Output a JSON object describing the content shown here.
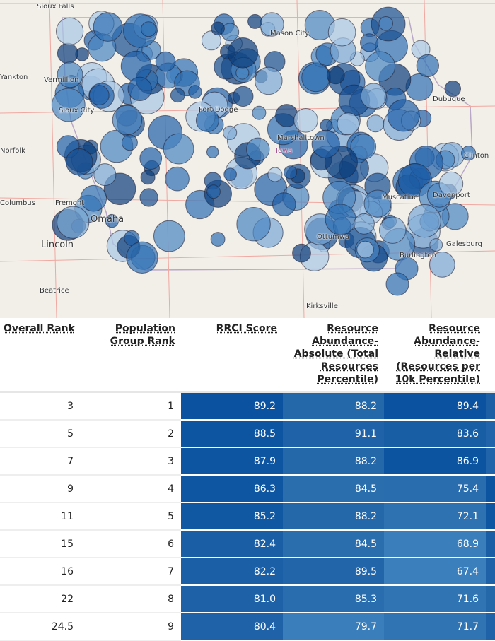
{
  "map": {
    "cities": [
      "Sioux Falls",
      "Yankton",
      "Vermillion",
      "Sioux City",
      "Norfolk",
      "Columbus",
      "Fremont",
      "Omaha",
      "Lincoln",
      "Beatrice",
      "Mason City",
      "Fort Dodge",
      "Marshalltown",
      "Iowa",
      "Dubuque",
      "Clinton",
      "Davenport",
      "Muscatine",
      "Ottumwa",
      "Galesburg",
      "Burlington",
      "Kirksville"
    ],
    "circle_color": "#1f5fa8"
  },
  "table": {
    "headers": [
      "Overall Rank",
      "Population Group Rank",
      "RRCI Score",
      "Resource Abundance-Absolute (Total Resources Percentile)",
      "Resource Abundance-Relative (Resources per 10k Percentile)"
    ],
    "rows": [
      [
        "3",
        "1",
        "89.2",
        "88.2",
        "89.4"
      ],
      [
        "5",
        "2",
        "88.5",
        "91.1",
        "83.6"
      ],
      [
        "7",
        "3",
        "87.9",
        "88.2",
        "86.9"
      ],
      [
        "9",
        "4",
        "86.3",
        "84.5",
        "75.4"
      ],
      [
        "11",
        "5",
        "85.2",
        "88.2",
        "72.1"
      ],
      [
        "15",
        "6",
        "82.4",
        "84.5",
        "68.9"
      ],
      [
        "16",
        "7",
        "82.2",
        "89.5",
        "67.4"
      ],
      [
        "22",
        "8",
        "81.0",
        "85.3",
        "71.6"
      ],
      [
        "24.5",
        "9",
        "80.4",
        "79.7",
        "71.7"
      ]
    ],
    "cell_colors": [
      [
        "#0b52a0",
        "#2468aa",
        "#0b53a0",
        "#1d5fa5"
      ],
      [
        "#0d55a1",
        "#1f62a8",
        "#185ea5",
        "#2264a9"
      ],
      [
        "#0e55a1",
        "#2468aa",
        "#0c54a0",
        "#2264a9"
      ],
      [
        "#0f56a2",
        "#2b6eae",
        "#2a6dae",
        "#0c54a0"
      ],
      [
        "#1158a3",
        "#2468aa",
        "#2e72b1",
        "#0f56a2"
      ],
      [
        "#1a5ea6",
        "#2b6eae",
        "#3a7fbb",
        "#1a5ea6"
      ],
      [
        "#1b5fa6",
        "#2265a9",
        "#3b80bc",
        "#1f62a8"
      ],
      [
        "#1e61a7",
        "#2a6dae",
        "#3174b3",
        "#2468aa"
      ],
      [
        "#2062a8",
        "#3a7ebb",
        "#3174b3",
        "#1f62a8"
      ]
    ]
  }
}
